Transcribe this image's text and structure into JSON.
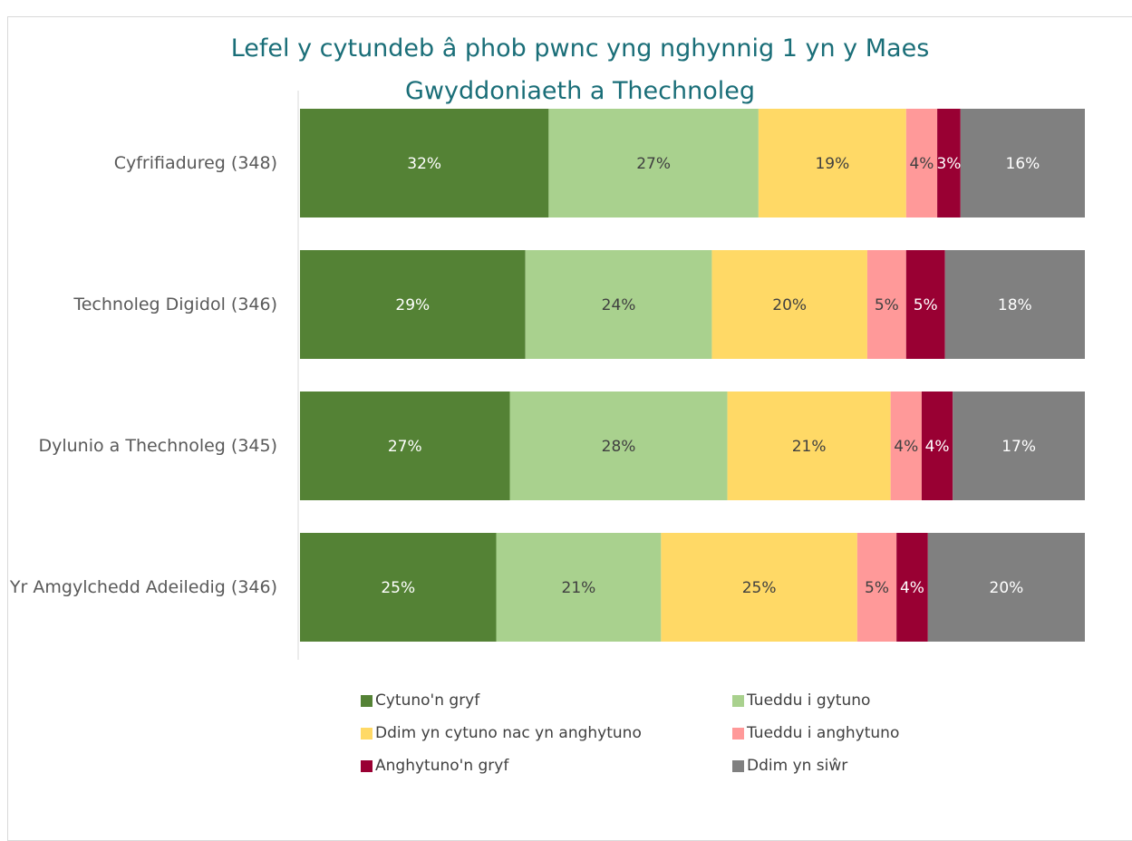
{
  "chart_data": {
    "type": "stacked_bar_100",
    "orientation": "horizontal",
    "title": "Lefel y cytundeb â phob pwnc yng nghynnig 1 yn y Maes Gwyddoniaeth a Thechnoleg",
    "categories": [
      "Cyfrifiadureg (348)",
      "Technoleg Digidol (346)",
      "Dylunio a Thechnoleg (345)",
      "Yr Amgylchedd Adeiledig (346)"
    ],
    "series": [
      {
        "name": "Cytuno'n gryf",
        "color": "#548235",
        "label_color": "#ffffff",
        "values": [
          32,
          29,
          27,
          25
        ],
        "value_labels": [
          "32%",
          "29%",
          "27%",
          "25%"
        ]
      },
      {
        "name": "Tueddu i gytuno",
        "color": "#a9d18e",
        "label_color": "#404040",
        "values": [
          27,
          24,
          28,
          21
        ],
        "value_labels": [
          "27%",
          "24%",
          "28%",
          "21%"
        ]
      },
      {
        "name": "Ddim yn cytuno nac yn anghytuno",
        "color": "#ffd966",
        "label_color": "#404040",
        "values": [
          19,
          20,
          21,
          25
        ],
        "value_labels": [
          "19%",
          "20%",
          "21%",
          "25%"
        ]
      },
      {
        "name": "Tueddu i anghytuno",
        "color": "#ff9999",
        "label_color": "#404040",
        "values": [
          4,
          5,
          4,
          5
        ],
        "value_labels": [
          "4%",
          "5%",
          "4%",
          "5%"
        ]
      },
      {
        "name": "Anghytuno'n gryf",
        "color": "#990033",
        "label_color": "#ffffff",
        "values": [
          3,
          5,
          4,
          4
        ],
        "value_labels": [
          "3%",
          "5%",
          "4%",
          "4%"
        ]
      },
      {
        "name": "Ddim yn siŵr",
        "color": "#808080",
        "label_color": "#ffffff",
        "values": [
          16,
          18,
          17,
          20
        ],
        "value_labels": [
          "16%",
          "18%",
          "17%",
          "20%"
        ]
      }
    ],
    "legend": "bottom"
  }
}
